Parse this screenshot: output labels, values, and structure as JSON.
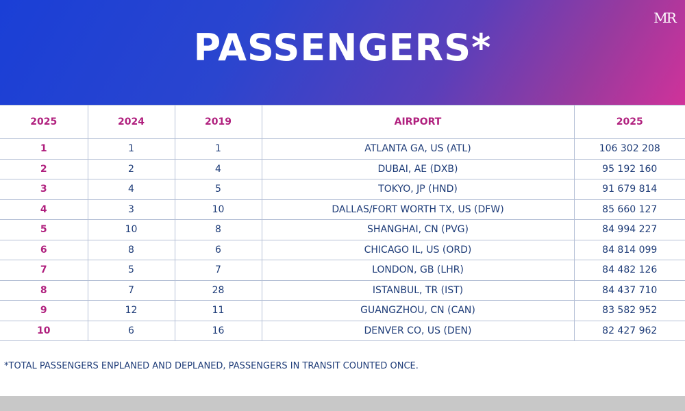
{
  "header": {
    "title": "PASSENGERS*",
    "logo_text": "MR",
    "brand_colors": {
      "gradient_start": "#1a3fd6",
      "gradient_end": "#d0329a"
    }
  },
  "chart_data": {
    "type": "table",
    "columns": [
      "2025",
      "2024",
      "2019",
      "AIRPORT",
      "2025"
    ],
    "rows": [
      {
        "rank_2025": "1",
        "rank_2024": "1",
        "rank_2019": "1",
        "airport": "ATLANTA GA, US (ATL)",
        "passengers_2025": "106 302 208"
      },
      {
        "rank_2025": "2",
        "rank_2024": "2",
        "rank_2019": "4",
        "airport": "DUBAI, AE (DXB)",
        "passengers_2025": "95 192 160"
      },
      {
        "rank_2025": "3",
        "rank_2024": "4",
        "rank_2019": "5",
        "airport": "TOKYO, JP (HND)",
        "passengers_2025": "91 679 814"
      },
      {
        "rank_2025": "4",
        "rank_2024": "3",
        "rank_2019": "10",
        "airport": "DALLAS/FORT WORTH TX, US (DFW)",
        "passengers_2025": "85 660 127"
      },
      {
        "rank_2025": "5",
        "rank_2024": "10",
        "rank_2019": "8",
        "airport": "SHANGHAI, CN (PVG)",
        "passengers_2025": "84 994 227"
      },
      {
        "rank_2025": "6",
        "rank_2024": "8",
        "rank_2019": "6",
        "airport": "CHICAGO IL, US (ORD)",
        "passengers_2025": "84 814 099"
      },
      {
        "rank_2025": "7",
        "rank_2024": "5",
        "rank_2019": "7",
        "airport": "LONDON, GB (LHR)",
        "passengers_2025": "84 482 126"
      },
      {
        "rank_2025": "8",
        "rank_2024": "7",
        "rank_2019": "28",
        "airport": "ISTANBUL, TR (IST)",
        "passengers_2025": "84 437 710"
      },
      {
        "rank_2025": "9",
        "rank_2024": "12",
        "rank_2019": "11",
        "airport": "GUANGZHOU, CN (CAN)",
        "passengers_2025": "83 582 952"
      },
      {
        "rank_2025": "10",
        "rank_2024": "6",
        "rank_2019": "16",
        "airport": "DENVER CO, US (DEN)",
        "passengers_2025": "82 427 962"
      }
    ],
    "header_color": "#b0207e",
    "text_color": "#1e3c78"
  },
  "footnote": "*TOTAL PASSENGERS ENPLANED AND DEPLANED, PASSENGERS IN TRANSIT COUNTED ONCE."
}
